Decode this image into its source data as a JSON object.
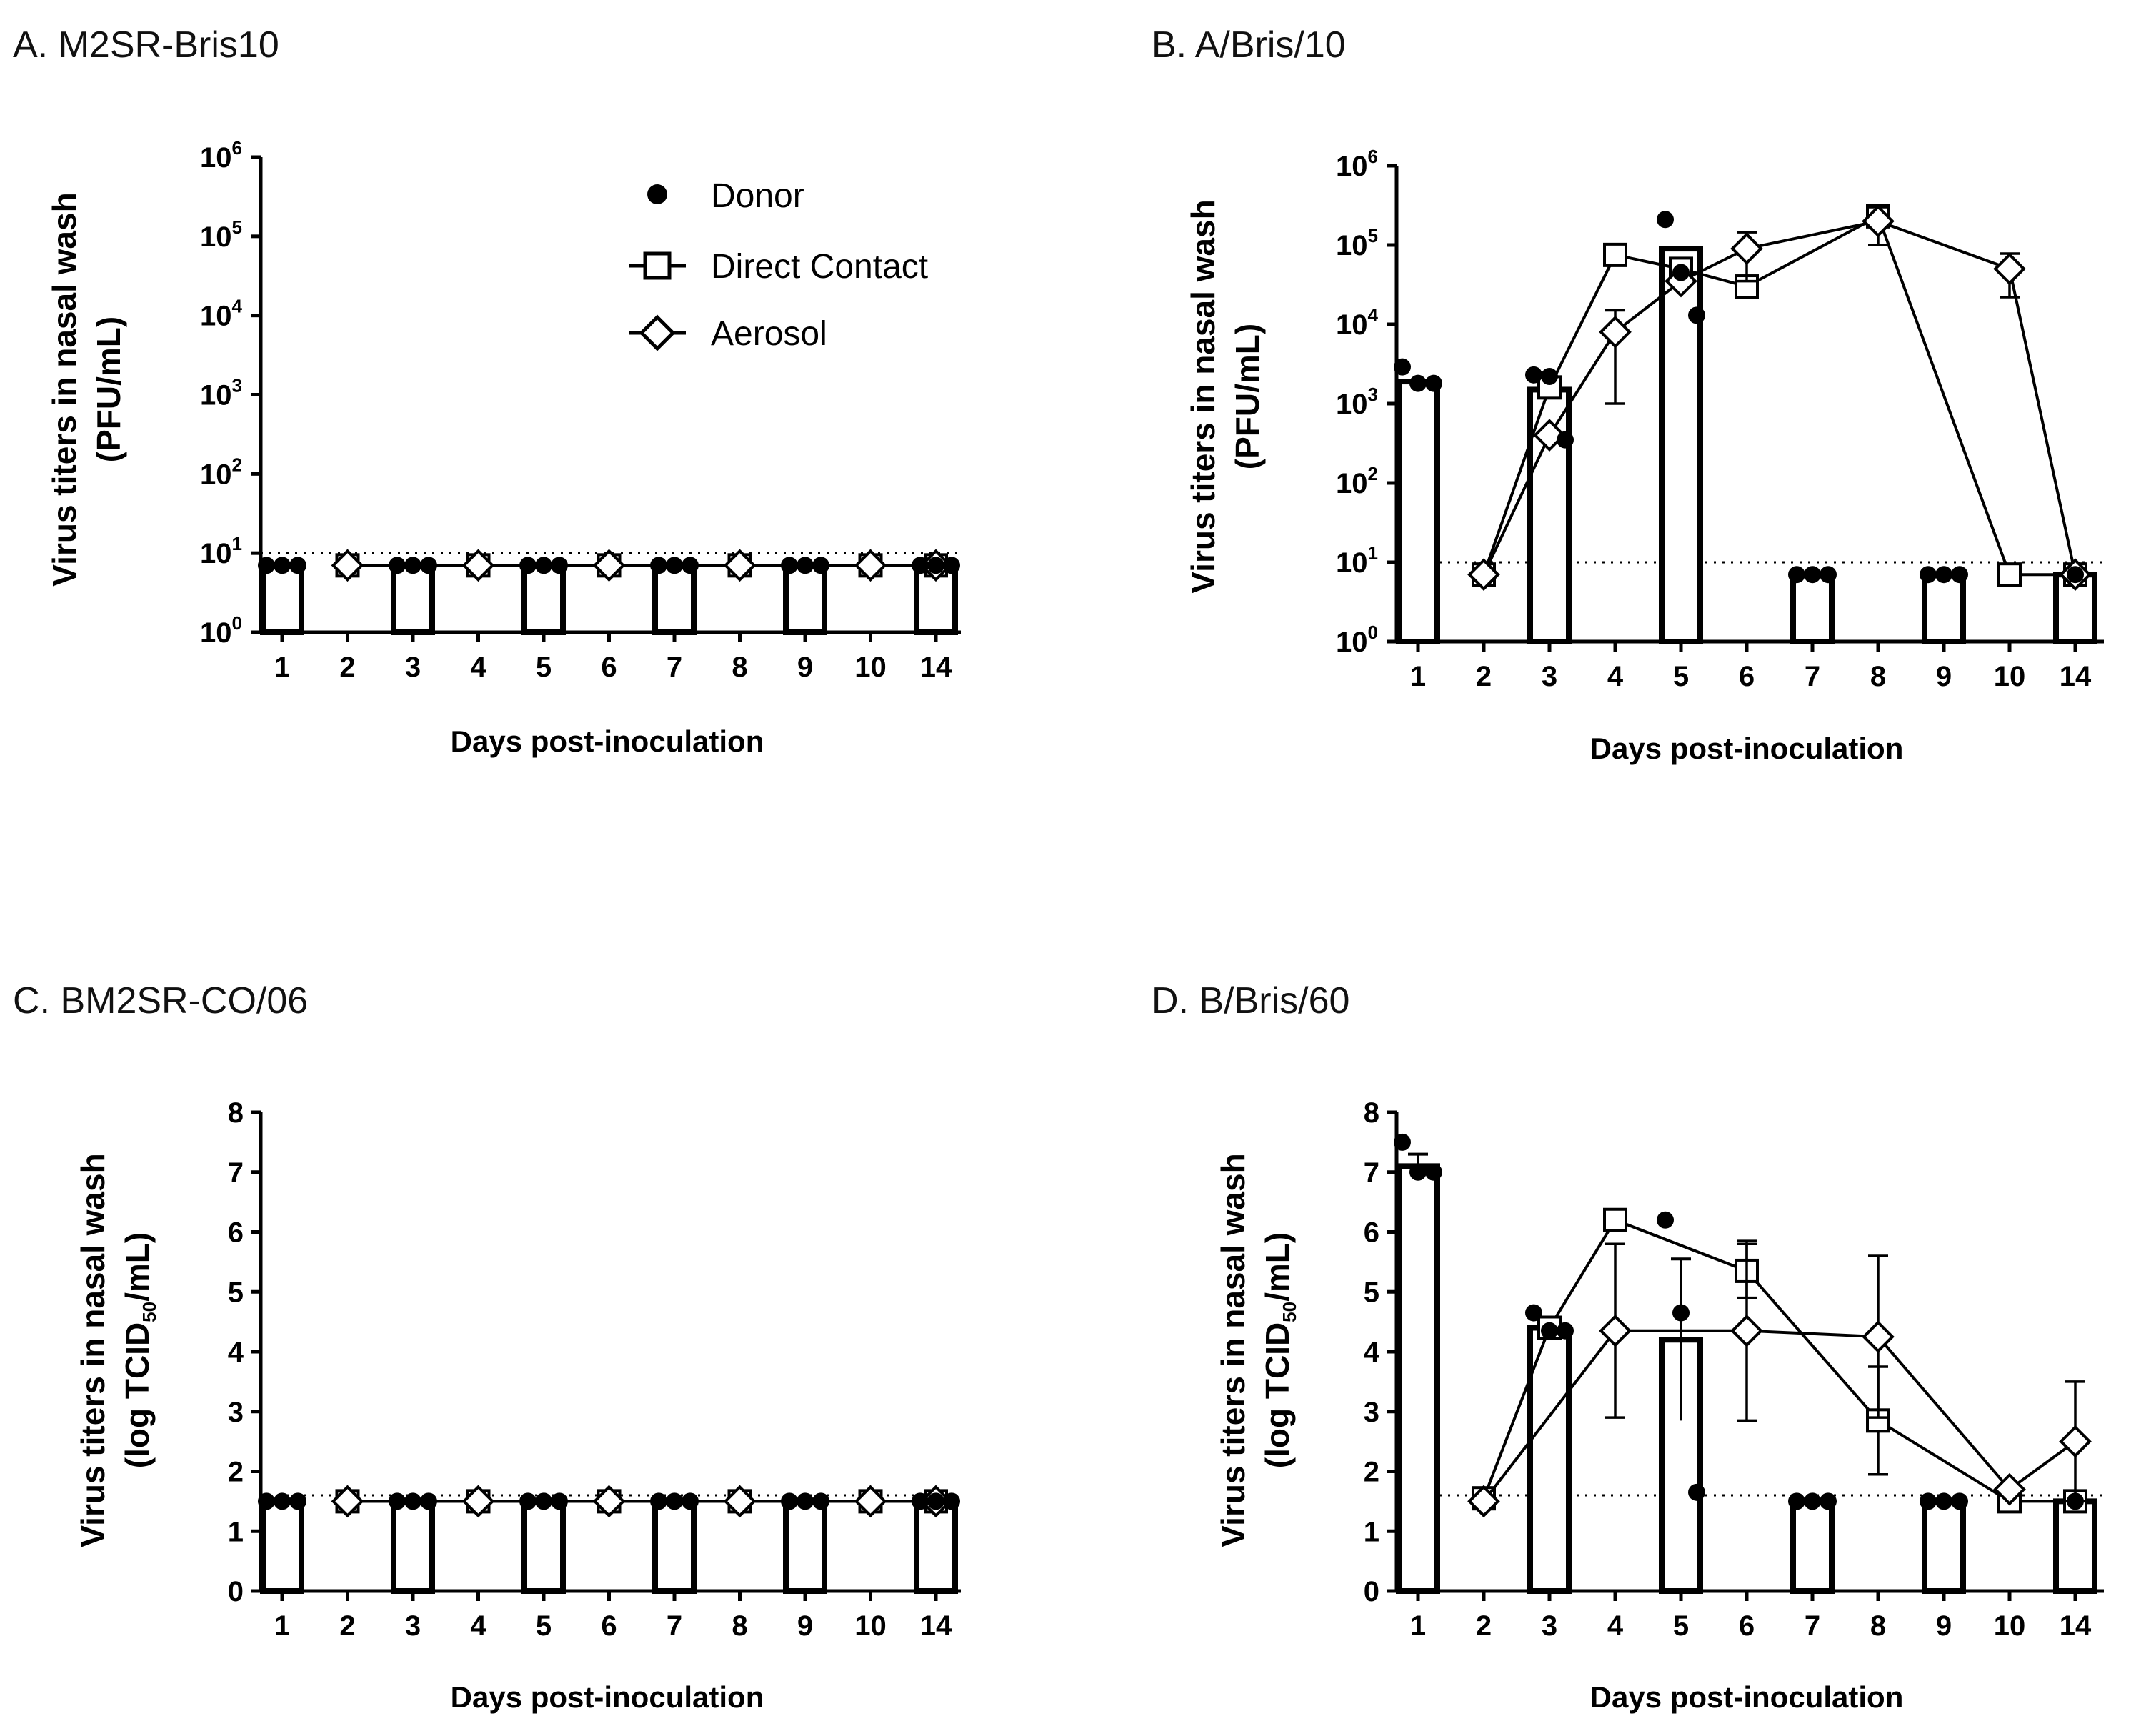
{
  "chart_data": [
    {
      "panel": "A",
      "title": "A. M2SR-Bris10",
      "type": "bar",
      "ylabel_line1": "Virus titers in nasal wash",
      "ylabel_line2": "(PFU/mL)",
      "xlabel": "Days post-inoculation",
      "yscale": "log",
      "ylim_exp": [
        0,
        6
      ],
      "y_tick_base": "10",
      "y_ticks_exp": [
        "0",
        "1",
        "2",
        "3",
        "4",
        "5",
        "6"
      ],
      "x_ticks": [
        "1",
        "2",
        "3",
        "4",
        "5",
        "6",
        "7",
        "8",
        "9",
        "10",
        "14"
      ],
      "detection_limit": 10,
      "donor_bars": [
        {
          "day": "1",
          "value": 7
        },
        {
          "day": "3",
          "value": 7
        },
        {
          "day": "5",
          "value": 7
        },
        {
          "day": "7",
          "value": 7
        },
        {
          "day": "9",
          "value": 7
        },
        {
          "day": "14",
          "value": 7
        }
      ],
      "donor_points": [
        {
          "day": "1",
          "values": [
            7,
            7,
            7
          ]
        },
        {
          "day": "3",
          "values": [
            7,
            7,
            7
          ]
        },
        {
          "day": "5",
          "values": [
            7,
            7,
            7
          ]
        },
        {
          "day": "7",
          "values": [
            7,
            7,
            7
          ]
        },
        {
          "day": "9",
          "values": [
            7,
            7,
            7
          ]
        },
        {
          "day": "14",
          "values": [
            7,
            7,
            7
          ]
        }
      ],
      "series": [
        {
          "name": "Direct Contact",
          "marker": "square",
          "x": [
            "2",
            "4",
            "6",
            "8",
            "10",
            "14"
          ],
          "values": [
            7,
            7,
            7,
            7,
            7,
            7
          ],
          "err": [
            0,
            0,
            0,
            0,
            0,
            0
          ]
        },
        {
          "name": "Aerosol",
          "marker": "diamond",
          "x": [
            "2",
            "4",
            "6",
            "8",
            "10",
            "14"
          ],
          "values": [
            7,
            7,
            7,
            7,
            7,
            7
          ],
          "err": [
            0,
            0,
            0,
            0,
            0,
            0
          ]
        }
      ],
      "legend": {
        "placement": "top-right",
        "items": [
          {
            "label": "Donor",
            "marker": "dot"
          },
          {
            "label": "Direct Contact",
            "marker": "square"
          },
          {
            "label": "Aerosol",
            "marker": "diamond"
          }
        ]
      }
    },
    {
      "panel": "B",
      "title": "B. A/Bris/10",
      "type": "bar",
      "ylabel_line1": "Virus titers in nasal wash",
      "ylabel_line2": "(PFU/mL)",
      "xlabel": "Days post-inoculation",
      "yscale": "log",
      "ylim_exp": [
        0,
        6
      ],
      "y_tick_base": "10",
      "y_ticks_exp": [
        "0",
        "1",
        "2",
        "3",
        "4",
        "5",
        "6"
      ],
      "x_ticks": [
        "1",
        "2",
        "3",
        "4",
        "5",
        "6",
        "7",
        "8",
        "9",
        "10",
        "14"
      ],
      "detection_limit": 10,
      "donor_bars": [
        {
          "day": "1",
          "value": 1900
        },
        {
          "day": "3",
          "value": 1500
        },
        {
          "day": "5",
          "value": 90000
        },
        {
          "day": "7",
          "value": 7
        },
        {
          "day": "9",
          "value": 7
        },
        {
          "day": "14",
          "value": 7
        }
      ],
      "donor_points": [
        {
          "day": "1",
          "values": [
            2900,
            1800,
            1800
          ]
        },
        {
          "day": "3",
          "values": [
            2300,
            2200,
            350
          ]
        },
        {
          "day": "5",
          "values": [
            210000,
            45000,
            13000
          ]
        },
        {
          "day": "7",
          "values": [
            7,
            7,
            7
          ]
        },
        {
          "day": "9",
          "values": [
            7,
            7,
            7
          ]
        },
        {
          "day": "14",
          "values": [
            7
          ]
        }
      ],
      "series": [
        {
          "name": "Direct Contact",
          "marker": "square",
          "x": [
            "2",
            "3",
            "4",
            "5",
            "6",
            "8",
            "10",
            "14"
          ],
          "values": [
            7,
            1600,
            75000,
            50000,
            30000,
            230000,
            7,
            7
          ],
          "err": [
            0,
            0,
            0,
            0,
            0,
            0,
            0,
            0
          ]
        },
        {
          "name": "Aerosol",
          "marker": "diamond",
          "x": [
            "2",
            "3",
            "4",
            "5",
            "6",
            "8",
            "10",
            "14"
          ],
          "values": [
            7,
            400,
            8000,
            35000,
            90000,
            200000,
            50000,
            7
          ],
          "err": [
            0,
            0,
            7000,
            0,
            55000,
            100000,
            28000,
            0
          ]
        }
      ]
    },
    {
      "panel": "C",
      "title": "C. BM2SR-CO/06",
      "type": "bar",
      "ylabel_line1": "Virus titers in nasal wash",
      "ylabel_line2_pre": "(log TCID",
      "ylabel_line2_sub": "50",
      "ylabel_line2_post": "/mL)",
      "xlabel": "Days post-inoculation",
      "yscale": "linear",
      "ylim": [
        0,
        8
      ],
      "y_ticks": [
        "0",
        "1",
        "2",
        "3",
        "4",
        "5",
        "6",
        "7",
        "8"
      ],
      "x_ticks": [
        "1",
        "2",
        "3",
        "4",
        "5",
        "6",
        "7",
        "8",
        "9",
        "10",
        "14"
      ],
      "detection_limit": 1.6,
      "donor_bars": [
        {
          "day": "1",
          "value": 1.5
        },
        {
          "day": "3",
          "value": 1.5
        },
        {
          "day": "5",
          "value": 1.5
        },
        {
          "day": "7",
          "value": 1.5
        },
        {
          "day": "9",
          "value": 1.5
        },
        {
          "day": "14",
          "value": 1.5
        }
      ],
      "donor_points": [
        {
          "day": "1",
          "values": [
            1.5,
            1.5,
            1.5
          ]
        },
        {
          "day": "3",
          "values": [
            1.5,
            1.5,
            1.5
          ]
        },
        {
          "day": "5",
          "values": [
            1.5,
            1.5,
            1.5
          ]
        },
        {
          "day": "7",
          "values": [
            1.5,
            1.5,
            1.5
          ]
        },
        {
          "day": "9",
          "values": [
            1.5,
            1.5,
            1.5
          ]
        },
        {
          "day": "14",
          "values": [
            1.5,
            1.5,
            1.5
          ]
        }
      ],
      "series": [
        {
          "name": "Direct Contact",
          "marker": "square",
          "x": [
            "2",
            "4",
            "6",
            "8",
            "10",
            "14"
          ],
          "values": [
            1.5,
            1.5,
            1.5,
            1.5,
            1.5,
            1.5
          ],
          "err": [
            0,
            0,
            0,
            0,
            0,
            0
          ]
        },
        {
          "name": "Aerosol",
          "marker": "diamond",
          "x": [
            "2",
            "4",
            "6",
            "8",
            "10",
            "14"
          ],
          "values": [
            1.5,
            1.5,
            1.5,
            1.5,
            1.5,
            1.5
          ],
          "err": [
            0,
            0,
            0,
            0,
            0,
            0
          ]
        }
      ]
    },
    {
      "panel": "D",
      "title": "D. B/Bris/60",
      "type": "bar",
      "ylabel_line1": "Virus titers in nasal wash",
      "ylabel_line2_pre": "(log TCID",
      "ylabel_line2_sub": "50",
      "ylabel_line2_post": "/mL)",
      "xlabel": "Days post-inoculation",
      "yscale": "linear",
      "ylim": [
        0,
        8
      ],
      "y_ticks": [
        "0",
        "1",
        "2",
        "3",
        "4",
        "5",
        "6",
        "7",
        "8"
      ],
      "x_ticks": [
        "1",
        "2",
        "3",
        "4",
        "5",
        "6",
        "7",
        "8",
        "9",
        "10",
        "14"
      ],
      "detection_limit": 1.6,
      "donor_bars": [
        {
          "day": "1",
          "value": 7.1,
          "err": 0.2
        },
        {
          "day": "3",
          "value": 4.4,
          "err": 0.1
        },
        {
          "day": "5",
          "value": 4.2,
          "err": 1.35
        },
        {
          "day": "7",
          "value": 1.5
        },
        {
          "day": "9",
          "value": 1.5
        },
        {
          "day": "14",
          "value": 1.5
        }
      ],
      "donor_points": [
        {
          "day": "1",
          "values": [
            7.5,
            7.0,
            7.0
          ]
        },
        {
          "day": "3",
          "values": [
            4.65,
            4.35,
            4.35
          ]
        },
        {
          "day": "5",
          "values": [
            6.2,
            4.65,
            1.65
          ]
        },
        {
          "day": "7",
          "values": [
            1.5,
            1.5,
            1.5
          ]
        },
        {
          "day": "9",
          "values": [
            1.5,
            1.5,
            1.5
          ]
        },
        {
          "day": "14",
          "values": [
            1.5
          ]
        }
      ],
      "series": [
        {
          "name": "Direct Contact",
          "marker": "square",
          "x": [
            "2",
            "3",
            "4",
            "6",
            "8",
            "10",
            "14"
          ],
          "values": [
            1.55,
            4.4,
            6.2,
            5.35,
            2.85,
            1.5,
            1.5
          ],
          "err": [
            0,
            0,
            0,
            0.45,
            0.9,
            0,
            0
          ]
        },
        {
          "name": "Aerosol",
          "marker": "diamond",
          "x": [
            "2",
            "4",
            "6",
            "8",
            "10",
            "14"
          ],
          "values": [
            1.5,
            4.35,
            4.35,
            4.25,
            1.7,
            2.5
          ],
          "err": [
            0,
            1.45,
            1.5,
            1.35,
            0,
            1.0
          ]
        }
      ]
    }
  ]
}
